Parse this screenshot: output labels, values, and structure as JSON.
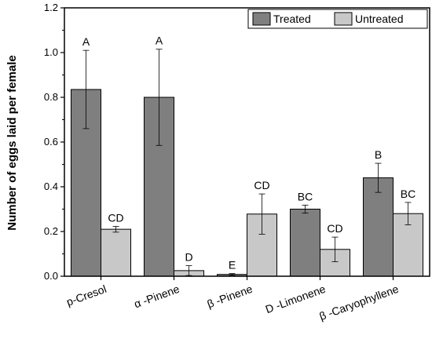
{
  "chart_data": {
    "type": "bar",
    "title": "",
    "xlabel": "",
    "ylabel": "Number of eggs laid per female",
    "ylim": [
      0,
      1.2
    ],
    "yticks": [
      "0.0",
      "0.2",
      "0.4",
      "0.6",
      "0.8",
      "1.0",
      "1.2"
    ],
    "ytick_values": [
      0,
      0.2,
      0.4,
      0.6,
      0.8,
      1.0,
      1.2
    ],
    "categories": [
      "p-Cresol",
      "α -Pinene",
      "β -Pinene",
      "D -Limonene",
      "β -Caryophyllene"
    ],
    "legend_position": "top-right",
    "series": [
      {
        "name": "Treated",
        "color": "#7f7f7f",
        "values": [
          0.835,
          0.8,
          0.008,
          0.3,
          0.44
        ],
        "errors": [
          0.175,
          0.215,
          0.004,
          0.018,
          0.065
        ],
        "labels": [
          "A",
          "A",
          "E",
          "BC",
          "B"
        ]
      },
      {
        "name": "Untreated",
        "color": "#c8c8c8",
        "values": [
          0.21,
          0.025,
          0.278,
          0.12,
          0.28
        ],
        "errors": [
          0.013,
          0.022,
          0.09,
          0.055,
          0.05
        ],
        "labels": [
          "CD",
          "D",
          "CD",
          "CD",
          "BC"
        ]
      }
    ],
    "grid": false
  }
}
